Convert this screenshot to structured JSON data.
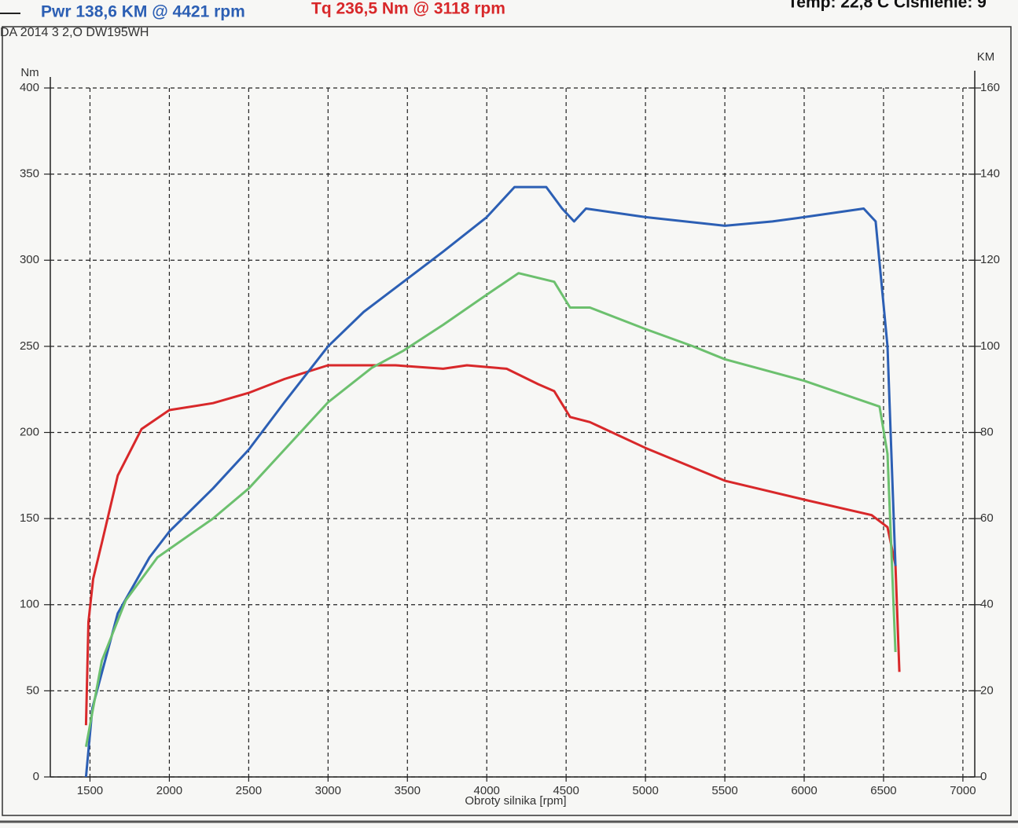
{
  "chart_data": {
    "type": "line",
    "annotations": [
      "Pwr  138,6 KM @ 4421 rpm",
      "Tq 236,5 Nm @ 3118 rpm",
      "Temp: 22,8 C   Cisnienie: 9"
    ],
    "subtitle": "DA 2014 3 2,O DW195WH",
    "y_label": "Nm",
    "y2_label": "KM",
    "x_label": "Obroty silnika [rpm]",
    "xlim": [
      1250,
      7050
    ],
    "xticks": [
      1500,
      2000,
      2500,
      3000,
      3500,
      4000,
      4500,
      5000,
      5500,
      6000,
      6500,
      7000
    ],
    "ylim": [
      0,
      400
    ],
    "yticks": [
      0,
      50,
      100,
      150,
      200,
      250,
      300,
      350,
      400
    ],
    "y2lim": [
      0,
      160
    ],
    "y2ticks": [
      0,
      20,
      40,
      60,
      80,
      100,
      120,
      140,
      160
    ],
    "grid": true,
    "series": [
      {
        "color": "#d8282a",
        "axis": "y",
        "x": [
          1475,
          1490,
          1520,
          1575,
          1675,
          1825,
          2000,
          2275,
          2500,
          2725,
          3000,
          3425,
          3725,
          3875,
          4125,
          4325,
          4425,
          4525,
          4650,
          5000,
          5500,
          6000,
          6425,
          6525,
          6575,
          6600
        ],
        "values": [
          30,
          90,
          115,
          136,
          175,
          202,
          213,
          217,
          223,
          231,
          239,
          239,
          237,
          239,
          237,
          228,
          224,
          209,
          206,
          191,
          172,
          161,
          152,
          145,
          123,
          61
        ]
      },
      {
        "color": "#2c5fb4",
        "axis": "y2",
        "x": [
          1475,
          1515,
          1675,
          1875,
          2000,
          2275,
          2500,
          2725,
          3000,
          3225,
          3475,
          3725,
          4000,
          4175,
          4375,
          4475,
          4550,
          4625,
          5000,
          5500,
          5800,
          6000,
          6375,
          6450,
          6525,
          6575
        ],
        "values": [
          0,
          16,
          38,
          51,
          57,
          67,
          76,
          87,
          100,
          108,
          115,
          122,
          130,
          137,
          137,
          132,
          129,
          132,
          130,
          128,
          129,
          130,
          132,
          129,
          100,
          49
        ]
      },
      {
        "color": "#6cc06e",
        "axis": "y2",
        "x": [
          1475,
          1575,
          1725,
          1925,
          2275,
          2500,
          2775,
          3000,
          3275,
          3475,
          3725,
          4000,
          4200,
          4425,
          4525,
          4650,
          5000,
          5300,
          5500,
          6000,
          6475,
          6525,
          6575
        ],
        "values": [
          7,
          27,
          41,
          51,
          60,
          67,
          78,
          87,
          95,
          99,
          105,
          112,
          117,
          115,
          109,
          109,
          104,
          100,
          97,
          92,
          86,
          75,
          29
        ]
      }
    ]
  }
}
